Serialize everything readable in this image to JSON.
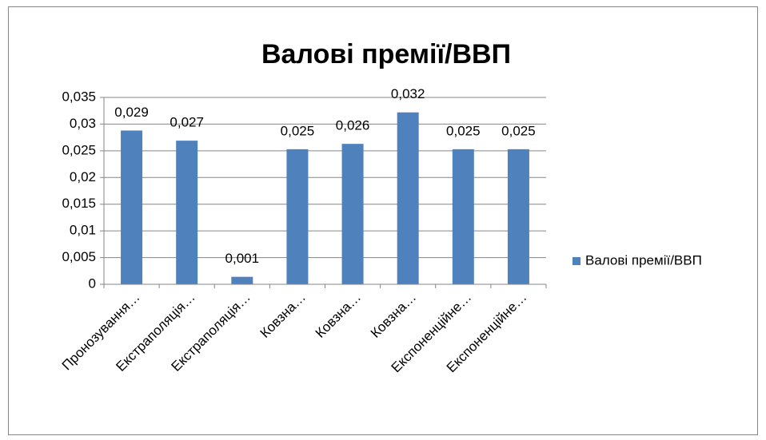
{
  "chart_data": {
    "type": "bar",
    "title": "Валові премії/ВВП",
    "categories": [
      "Пронозування…",
      "Екстраполяція…",
      "Екстраполяція…",
      "Ковзна…",
      "Ковзна…",
      "Ковзна…",
      "Експоненційне…",
      "Експоненційне…"
    ],
    "series": [
      {
        "name": "Валові премії/ВВП",
        "color": "#4f81bd",
        "values": [
          0.0288,
          0.0269,
          0.0014,
          0.0253,
          0.0263,
          0.0322,
          0.0253,
          0.0253
        ],
        "value_labels": [
          "0,029",
          "0,027",
          "0,001",
          "0,025",
          "0,026",
          "0,032",
          "0,025",
          "0,025"
        ]
      }
    ],
    "ylim": [
      0,
      0.035
    ],
    "yticks": [
      0,
      {
        "value": 0.005,
        "label": "0,005"
      },
      {
        "value": 0.01,
        "label": "0,01"
      },
      {
        "value": 0.015,
        "label": "0,015"
      },
      {
        "value": 0.02,
        "label": "0,02"
      },
      {
        "value": 0.025,
        "label": "0,025"
      },
      {
        "value": 0.03,
        "label": "0,03"
      },
      {
        "value": 0.035,
        "label": "0,035"
      }
    ],
    "grid": true,
    "legend": "right"
  }
}
